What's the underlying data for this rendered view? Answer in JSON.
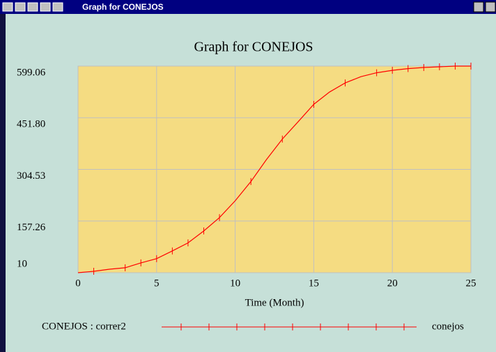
{
  "window_title": "Graph for CONEJOS",
  "chart_data": {
    "type": "line",
    "title": "Graph for CONEJOS",
    "xlabel": "Time (Month)",
    "x": [
      0,
      1,
      2,
      3,
      4,
      5,
      6,
      7,
      8,
      9,
      10,
      11,
      12,
      13,
      14,
      15,
      16,
      17,
      18,
      19,
      20,
      21,
      22,
      23,
      24,
      25
    ],
    "series": [
      {
        "name": "CONEJOS : correr2",
        "run_label": "conejos",
        "color": "#ff0000",
        "values": [
          10,
          14,
          20,
          24,
          38,
          50,
          72,
          95,
          129,
          167,
          215,
          270,
          333,
          391,
          440,
          490,
          525,
          551,
          569,
          580,
          587,
          592,
          595,
          597,
          599,
          599
        ]
      }
    ],
    "xlim": [
      0,
      25
    ],
    "xticks": [
      0,
      5,
      10,
      15,
      20,
      25
    ],
    "ylim": [
      10,
      599.06
    ],
    "yticks": [
      10,
      157.26,
      304.53,
      {
        "value": 451.8,
        "label": "451.80"
      },
      599.06
    ],
    "grid": true,
    "plot_color": "#f5dc82",
    "grid_color": "#c0c0c0"
  }
}
